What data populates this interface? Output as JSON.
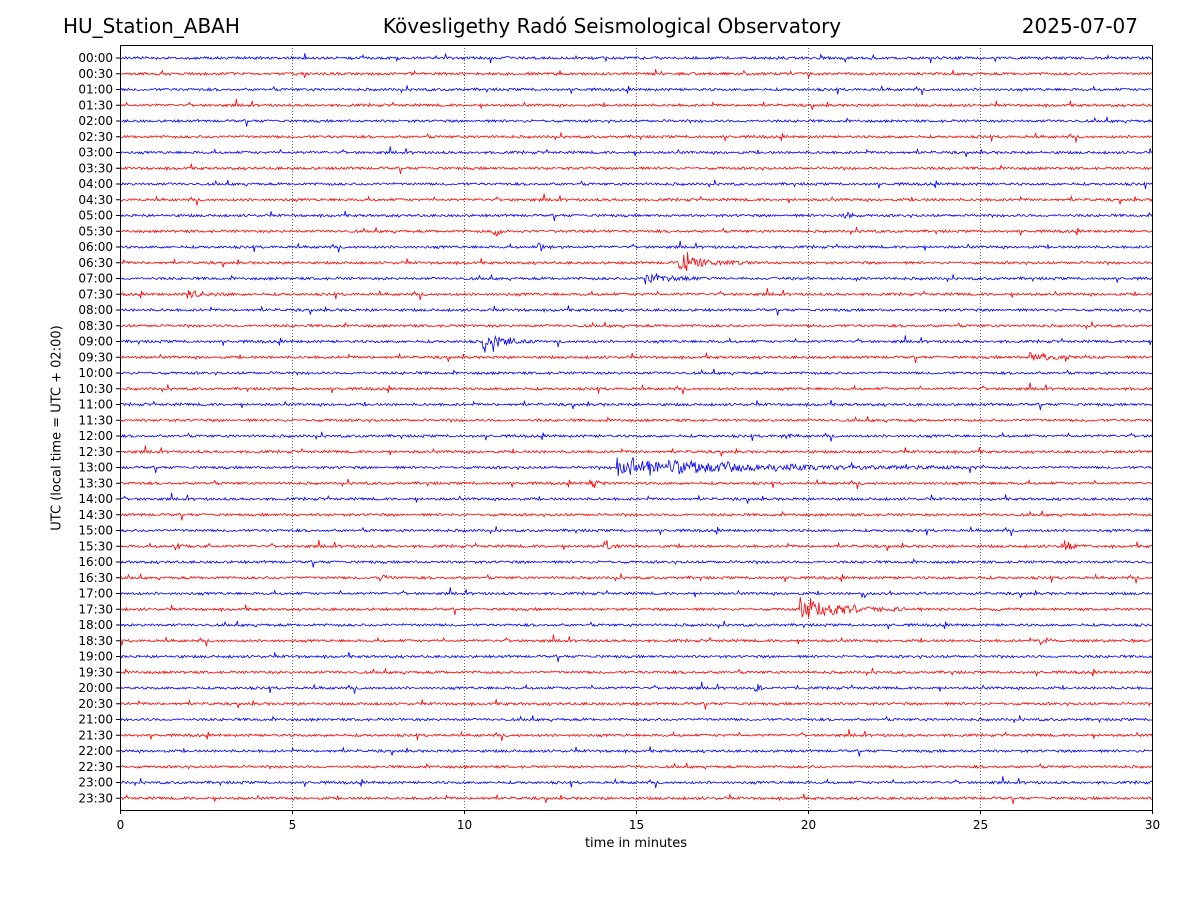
{
  "header": {
    "station": "HU_Station_ABAH",
    "observatory": "Kövesligethy Radó Seismological Observatory",
    "date": "2025-07-07"
  },
  "chart_data": {
    "type": "line",
    "xlabel": "time in minutes",
    "ylabel": "UTC (local time = UTC + 02:00)",
    "xlim": [
      0,
      30
    ],
    "x_ticks": [
      "0",
      "5",
      "10",
      "15",
      "20",
      "25",
      "30"
    ],
    "x_tick_values": [
      0,
      5,
      10,
      15,
      20,
      25,
      30
    ],
    "grid": "vertical dotted at x ticks",
    "row_labels": [
      "00:00",
      "00:30",
      "01:00",
      "01:30",
      "02:00",
      "02:30",
      "03:00",
      "03:30",
      "04:00",
      "04:30",
      "05:00",
      "05:30",
      "06:00",
      "06:30",
      "07:00",
      "07:30",
      "08:00",
      "08:30",
      "09:00",
      "09:30",
      "10:00",
      "10:30",
      "11:00",
      "11:30",
      "12:00",
      "12:30",
      "13:00",
      "13:30",
      "14:00",
      "14:30",
      "15:00",
      "15:30",
      "16:00",
      "16:30",
      "17:00",
      "17:30",
      "18:00",
      "18:30",
      "19:00",
      "19:30",
      "20:00",
      "20:30",
      "21:00",
      "21:30",
      "22:00",
      "22:30",
      "23:00",
      "23:30"
    ],
    "colors": [
      "#0000ff",
      "#ff0000"
    ],
    "events": [
      {
        "row": "05:00",
        "minute": 21.0,
        "amplitude": 12,
        "duration": 0.3
      },
      {
        "row": "05:30",
        "minute": 10.9,
        "amplitude": 9,
        "duration": 0.3
      },
      {
        "row": "06:00",
        "minute": 12.2,
        "amplitude": 8,
        "duration": 0.3
      },
      {
        "row": "06:30",
        "minute": 16.3,
        "amplitude": 11,
        "duration": 1.4
      },
      {
        "row": "07:00",
        "minute": 15.3,
        "amplitude": 8,
        "duration": 1.3
      },
      {
        "row": "07:30",
        "minute": 2.0,
        "amplitude": 6,
        "duration": 0.8
      },
      {
        "row": "09:00",
        "minute": 10.6,
        "amplitude": 22,
        "duration": 0.9
      },
      {
        "row": "09:30",
        "minute": 26.5,
        "amplitude": 4,
        "duration": 1.5
      },
      {
        "row": "12:00",
        "minute": 19.2,
        "amplitude": 8,
        "duration": 0.3
      },
      {
        "row": "13:00",
        "minute": 14.5,
        "amplitude": 13,
        "duration": 6.5
      },
      {
        "row": "13:30",
        "minute": 13.7,
        "amplitude": 9,
        "duration": 0.3
      },
      {
        "row": "15:30",
        "minute": 1.6,
        "amplitude": 8,
        "duration": 0.3
      },
      {
        "row": "15:30",
        "minute": 14.1,
        "amplitude": 5,
        "duration": 0.4
      },
      {
        "row": "15:30",
        "minute": 27.4,
        "amplitude": 8,
        "duration": 0.5
      },
      {
        "row": "16:30",
        "minute": 7.6,
        "amplitude": 5,
        "duration": 0.3
      },
      {
        "row": "17:00",
        "minute": 21.6,
        "amplitude": 6,
        "duration": 0.3
      },
      {
        "row": "17:30",
        "minute": 19.8,
        "amplitude": 14,
        "duration": 2.5
      },
      {
        "row": "18:30",
        "minute": 26.8,
        "amplitude": 7,
        "duration": 0.3
      },
      {
        "row": "20:00",
        "minute": 18.5,
        "amplitude": 5,
        "duration": 0.3
      }
    ]
  }
}
